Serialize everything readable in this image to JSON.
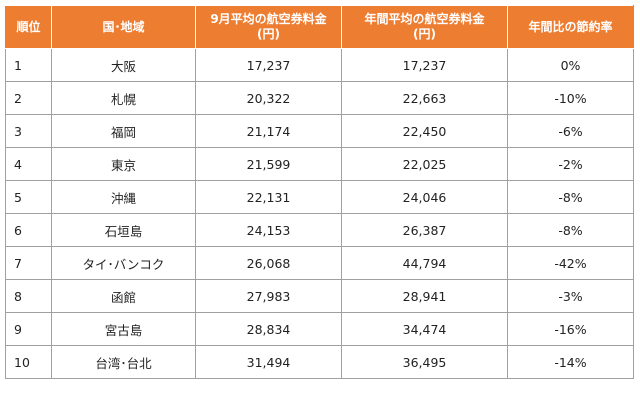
{
  "table": {
    "headers": {
      "rank": "順位",
      "region": "国･地域",
      "september_fare_line1": "9月平均の航空券料金",
      "september_fare_line2": "(円)",
      "annual_fare_line1": "年間平均の航空券料金",
      "annual_fare_line2": "(円)",
      "savings": "年間比の節約率"
    },
    "rows": [
      {
        "rank": "1",
        "region": "大阪",
        "september_fare": "17,237",
        "annual_fare": "17,237",
        "savings": "0%"
      },
      {
        "rank": "2",
        "region": "札幌",
        "september_fare": "20,322",
        "annual_fare": "22,663",
        "savings": "-10%"
      },
      {
        "rank": "3",
        "region": "福岡",
        "september_fare": "21,174",
        "annual_fare": "22,450",
        "savings": "-6%"
      },
      {
        "rank": "4",
        "region": "東京",
        "september_fare": "21,599",
        "annual_fare": "22,025",
        "savings": "-2%"
      },
      {
        "rank": "5",
        "region": "沖縄",
        "september_fare": "22,131",
        "annual_fare": "24,046",
        "savings": "-8%"
      },
      {
        "rank": "6",
        "region": "石垣島",
        "september_fare": "24,153",
        "annual_fare": "26,387",
        "savings": "-8%"
      },
      {
        "rank": "7",
        "region": "タイ･バンコク",
        "september_fare": "26,068",
        "annual_fare": "44,794",
        "savings": "-42%"
      },
      {
        "rank": "8",
        "region": "函館",
        "september_fare": "27,983",
        "annual_fare": "28,941",
        "savings": "-3%"
      },
      {
        "rank": "9",
        "region": "宮古島",
        "september_fare": "28,834",
        "annual_fare": "34,474",
        "savings": "-16%"
      },
      {
        "rank": "10",
        "region": "台湾･台北",
        "september_fare": "31,494",
        "annual_fare": "36,495",
        "savings": "-14%"
      }
    ],
    "colors": {
      "header_background": "#ED7D31",
      "header_text": "#ffffff",
      "grid_line": "#a0a0a0"
    }
  }
}
